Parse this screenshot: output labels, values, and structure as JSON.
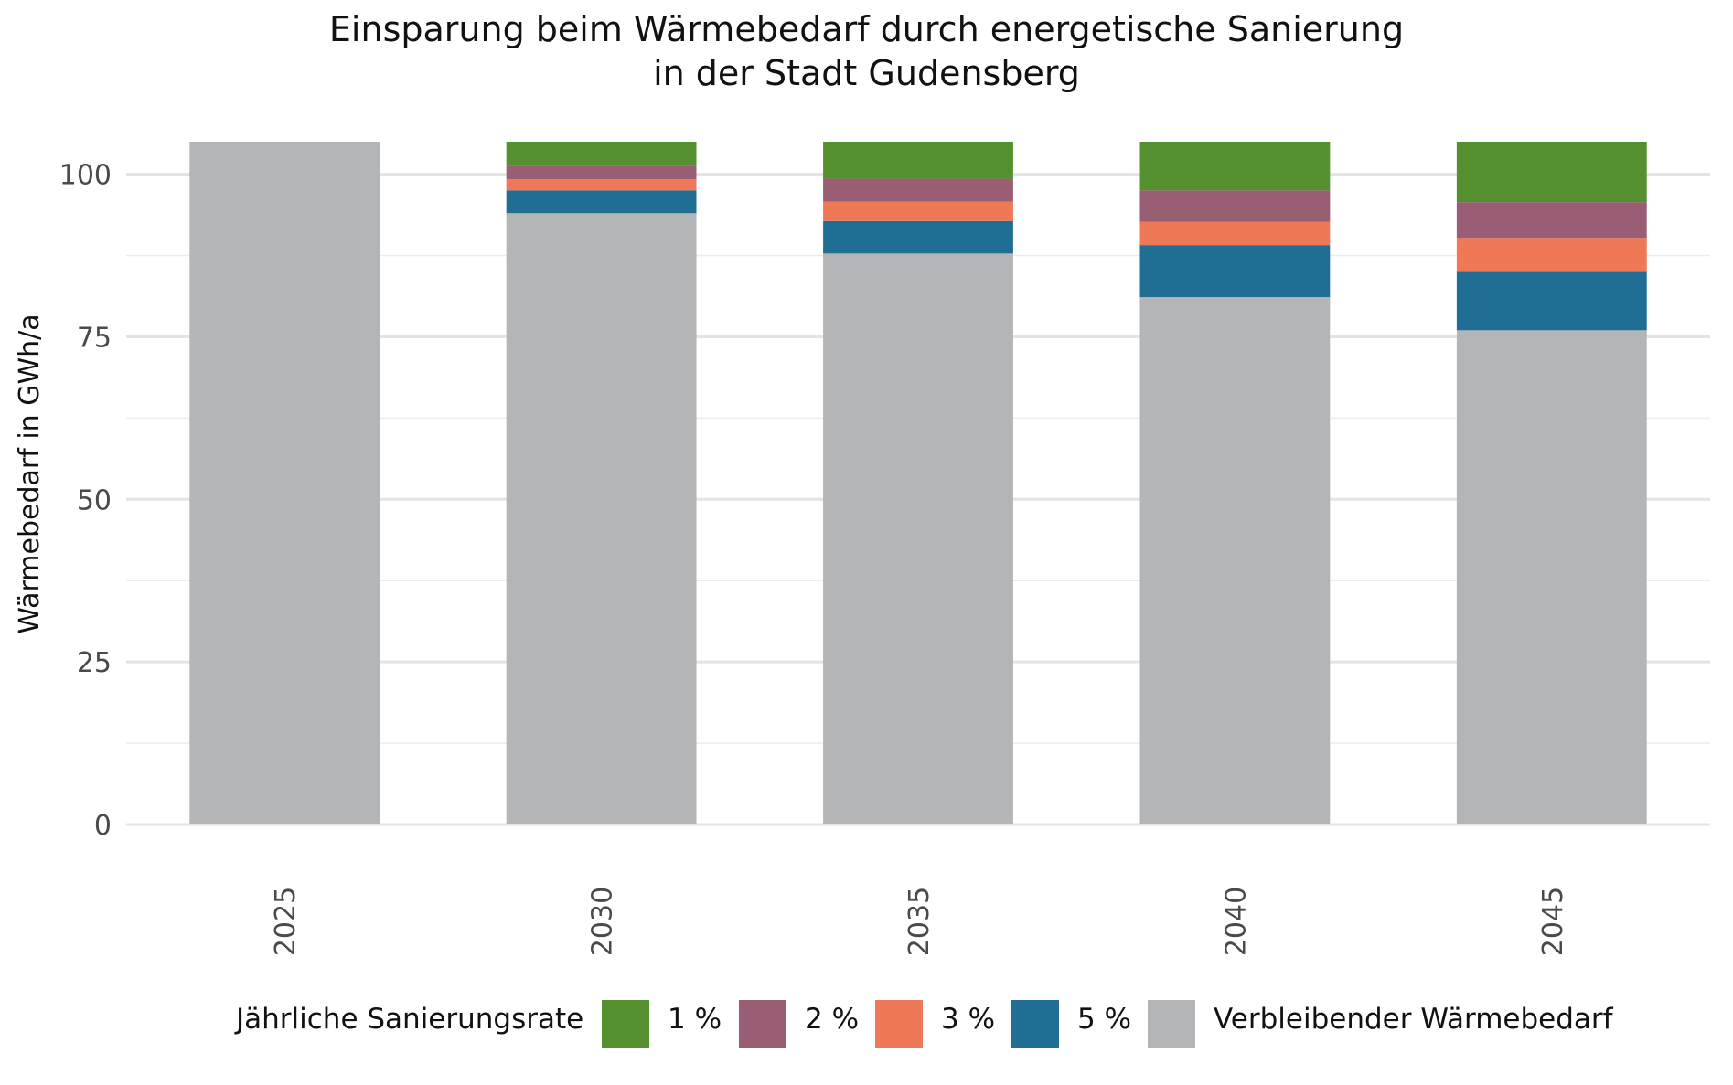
{
  "chart_data": {
    "type": "bar",
    "stacked": true,
    "title": [
      "Einsparung beim Wärmebedarf durch energetische Sanierung",
      "in der Stadt Gudensberg"
    ],
    "xlabel": "",
    "ylabel": "Wärmebedarf in GWh/a",
    "ylim": [
      0,
      105
    ],
    "yticks": [
      0,
      25,
      50,
      75,
      100
    ],
    "grid": true,
    "legend_position": "bottom",
    "legend_title": "Jährliche Sanierungsrate",
    "categories": [
      "2025",
      "2030",
      "2035",
      "2040",
      "2045"
    ],
    "series": [
      {
        "name": "Verbleibender Wärmebedarf",
        "color": "#b4b5b7",
        "values": [
          105.0,
          94.0,
          87.8,
          81.1,
          76.0
        ]
      },
      {
        "name": "5 %",
        "color": "#206e94",
        "values": [
          0.0,
          3.5,
          5.0,
          8.0,
          9.0
        ]
      },
      {
        "name": "3 %",
        "color": "#ef7857",
        "values": [
          0.0,
          1.7,
          3.0,
          3.6,
          5.2
        ]
      },
      {
        "name": "2 %",
        "color": "#9a5e74",
        "values": [
          0.0,
          2.1,
          3.5,
          4.8,
          5.5
        ]
      },
      {
        "name": "1 %",
        "color": "#55902f",
        "values": [
          0.0,
          3.7,
          5.7,
          7.5,
          9.3
        ]
      }
    ],
    "legend_order": [
      "1 %",
      "2 %",
      "3 %",
      "5 %",
      "Verbleibender Wärmebedarf"
    ]
  }
}
